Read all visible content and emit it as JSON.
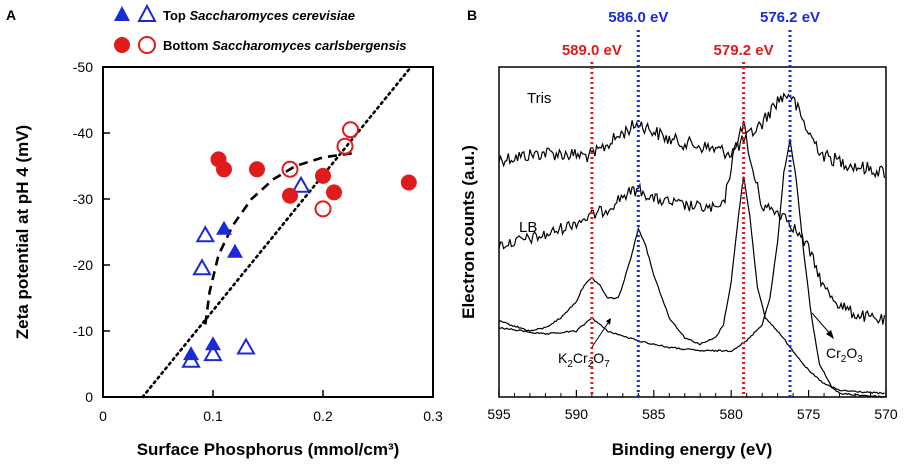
{
  "chart_data": [
    {
      "type": "scatter",
      "panel": "A",
      "title": "",
      "xlabel": "Surface Phosphorus (mmol/cm³)",
      "ylabel": "Zeta potential at pH 4 (mV)",
      "xlim": [
        0,
        0.3
      ],
      "ylim": [
        0,
        -50
      ],
      "xticks": [
        0,
        0.1,
        0.2,
        0.3
      ],
      "xtick_labels": [
        "0",
        "0.1",
        "0.2",
        "0.3"
      ],
      "yticks": [
        0,
        -10,
        -20,
        -30,
        -40,
        -50
      ],
      "ytick_labels": [
        "0",
        "-10",
        "-20",
        "-30",
        "-40",
        "-50"
      ],
      "legend": [
        {
          "group": "Top",
          "species": "Saccharomyces cerevisiae",
          "marker": "triangle",
          "color": "#1a2bd6"
        },
        {
          "group": "Bottom",
          "species": "Saccharomyces carlsbergensis",
          "marker": "circle",
          "color": "#e01b1b"
        }
      ],
      "series": [
        {
          "name": "Top filled",
          "marker": "triangle",
          "filled": true,
          "color": "#1a2bd6",
          "points": [
            [
              0.08,
              -6.5
            ],
            [
              0.1,
              -8
            ],
            [
              0.11,
              -25.5
            ],
            [
              0.12,
              -22
            ]
          ]
        },
        {
          "name": "Top open",
          "marker": "triangle",
          "filled": false,
          "color": "#1a2bd6",
          "points": [
            [
              0.08,
              -5.5
            ],
            [
              0.09,
              -19.5
            ],
            [
              0.093,
              -24.5
            ],
            [
              0.1,
              -6.5
            ],
            [
              0.13,
              -7.5
            ],
            [
              0.18,
              -32
            ]
          ]
        },
        {
          "name": "Bottom filled",
          "marker": "circle",
          "filled": true,
          "color": "#e01b1b",
          "points": [
            [
              0.105,
              -36
            ],
            [
              0.11,
              -34.5
            ],
            [
              0.14,
              -34.5
            ],
            [
              0.17,
              -30.5
            ],
            [
              0.2,
              -33.5
            ],
            [
              0.21,
              -31
            ],
            [
              0.278,
              -32.5
            ]
          ]
        },
        {
          "name": "Bottom open",
          "marker": "circle",
          "filled": false,
          "color": "#e01b1b",
          "points": [
            [
              0.17,
              -34.5
            ],
            [
              0.2,
              -28.5
            ],
            [
              0.22,
              -38
            ],
            [
              0.225,
              -40.5
            ]
          ]
        }
      ],
      "fits": [
        {
          "name": "dashed curve",
          "style": "dashed",
          "points": [
            [
              0.093,
              -11
            ],
            [
              0.097,
              -16
            ],
            [
              0.105,
              -21.5
            ],
            [
              0.118,
              -26
            ],
            [
              0.135,
              -30
            ],
            [
              0.155,
              -33
            ],
            [
              0.175,
              -35
            ],
            [
              0.2,
              -36.3
            ],
            [
              0.23,
              -37
            ]
          ]
        },
        {
          "name": "dotted line",
          "style": "dotted",
          "points": [
            [
              0.036,
              0
            ],
            [
              0.28,
              -50
            ]
          ]
        }
      ]
    },
    {
      "type": "line",
      "panel": "B",
      "title": "",
      "xlabel": "Binding energy (eV)",
      "ylabel": "Electron counts  (a.u.)",
      "xlim": [
        595,
        570
      ],
      "xticks": [
        595,
        590,
        585,
        580,
        575,
        570
      ],
      "xtick_labels": [
        "595",
        "590",
        "585",
        "580",
        "575",
        "570"
      ],
      "reference_lines": [
        {
          "x": 589.0,
          "label": "589.0 eV",
          "color": "#e01b1b"
        },
        {
          "x": 586.0,
          "label": "586.0 eV",
          "color": "#1a2bd6"
        },
        {
          "x": 579.2,
          "label": "579.2 eV",
          "color": "#e01b1b"
        },
        {
          "x": 576.2,
          "label": "576.2 eV",
          "color": "#1a2bd6"
        }
      ],
      "series_labels": [
        "Tris",
        "LB"
      ],
      "annotations": [
        {
          "text": "K2Cr2O7",
          "base": "K",
          "sub1": "2",
          "mid": "Cr",
          "sub2": "2",
          "end": "O",
          "sub3": "7"
        },
        {
          "text": "Cr2O3",
          "base": "Cr",
          "sub1": "2",
          "mid": "O",
          "sub2": "3"
        }
      ],
      "series": [
        {
          "name": "Tris",
          "noise": 7,
          "points": [
            [
              595,
              0.72
            ],
            [
              592,
              0.74
            ],
            [
              589,
              0.73
            ],
            [
              587,
              0.8
            ],
            [
              586,
              0.83
            ],
            [
              584,
              0.78
            ],
            [
              582,
              0.76
            ],
            [
              580,
              0.74
            ],
            [
              578,
              0.83
            ],
            [
              577,
              0.9
            ],
            [
              576.2,
              0.92
            ],
            [
              575,
              0.8
            ],
            [
              574,
              0.73
            ],
            [
              572,
              0.7
            ],
            [
              570,
              0.68
            ]
          ]
        },
        {
          "name": "LB",
          "noise": 6,
          "points": [
            [
              595,
              0.46
            ],
            [
              592,
              0.49
            ],
            [
              590,
              0.53
            ],
            [
              588,
              0.57
            ],
            [
              587,
              0.61
            ],
            [
              586,
              0.63
            ],
            [
              585,
              0.6
            ],
            [
              583,
              0.58
            ],
            [
              581,
              0.57
            ],
            [
              580.5,
              0.58
            ],
            [
              580,
              0.7
            ],
            [
              579.5,
              0.8
            ],
            [
              579.2,
              0.83
            ],
            [
              578.8,
              0.72
            ],
            [
              578,
              0.58
            ],
            [
              576.5,
              0.55
            ],
            [
              575,
              0.45
            ],
            [
              574,
              0.33
            ],
            [
              573,
              0.28
            ],
            [
              572,
              0.25
            ],
            [
              571,
              0.24
            ],
            [
              570,
              0.23
            ]
          ]
        },
        {
          "name": "K2Cr2O7",
          "noise": 0,
          "points": [
            [
              595,
              0.23
            ],
            [
              593,
              0.2
            ],
            [
              592,
              0.21
            ],
            [
              591,
              0.24
            ],
            [
              590,
              0.29
            ],
            [
              589.5,
              0.34
            ],
            [
              589,
              0.36
            ],
            [
              588.5,
              0.34
            ],
            [
              588,
              0.3
            ],
            [
              587.3,
              0.3
            ],
            [
              587,
              0.34
            ],
            [
              586.5,
              0.42
            ],
            [
              586,
              0.51
            ],
            [
              585.6,
              0.47
            ],
            [
              585,
              0.37
            ],
            [
              584,
              0.24
            ],
            [
              583,
              0.18
            ],
            [
              582,
              0.16
            ],
            [
              581,
              0.18
            ],
            [
              580.5,
              0.22
            ],
            [
              580,
              0.35
            ],
            [
              579.5,
              0.56
            ],
            [
              579.2,
              0.67
            ],
            [
              578.8,
              0.55
            ],
            [
              578.3,
              0.33
            ],
            [
              577.8,
              0.24
            ],
            [
              577,
              0.2
            ],
            [
              576,
              0.14
            ],
            [
              575,
              0.08
            ],
            [
              574,
              0.04
            ],
            [
              573,
              0.02
            ],
            [
              570,
              0.01
            ]
          ]
        },
        {
          "name": "Cr2O3",
          "noise": 0,
          "points": [
            [
              595,
              0.21
            ],
            [
              592,
              0.19
            ],
            [
              590,
              0.2
            ],
            [
              589.5,
              0.22
            ],
            [
              589,
              0.24
            ],
            [
              588,
              0.2
            ],
            [
              586,
              0.17
            ],
            [
              584,
              0.15
            ],
            [
              582,
              0.14
            ],
            [
              580,
              0.14
            ],
            [
              579,
              0.17
            ],
            [
              578,
              0.22
            ],
            [
              577.5,
              0.3
            ],
            [
              577,
              0.47
            ],
            [
              576.6,
              0.68
            ],
            [
              576.2,
              0.78
            ],
            [
              575.8,
              0.66
            ],
            [
              575.3,
              0.43
            ],
            [
              574.8,
              0.24
            ],
            [
              574.3,
              0.1
            ],
            [
              573.5,
              0.03
            ],
            [
              573,
              0.01
            ],
            [
              570,
              0
            ]
          ]
        }
      ]
    }
  ],
  "panels": {
    "a": {
      "letter": "A",
      "xlabel": "Surface Phosphorus (mmol/cm³)",
      "ylabel": "Zeta potential at pH 4 (mV)",
      "legend_top_prefix": "Top",
      "legend_top_species": "Saccharomyces cerevisiae",
      "legend_bottom_prefix": "Bottom",
      "legend_bottom_species": "Saccharomyces carlsbergensis"
    },
    "b": {
      "letter": "B",
      "xlabel": "Binding energy (eV)",
      "ylabel": "Electron counts  (a.u.)",
      "tris_label": "Tris",
      "lb_label": "LB"
    }
  },
  "colors": {
    "blue": "#1a2bd6",
    "red": "#e01b1b",
    "black": "#000000"
  }
}
